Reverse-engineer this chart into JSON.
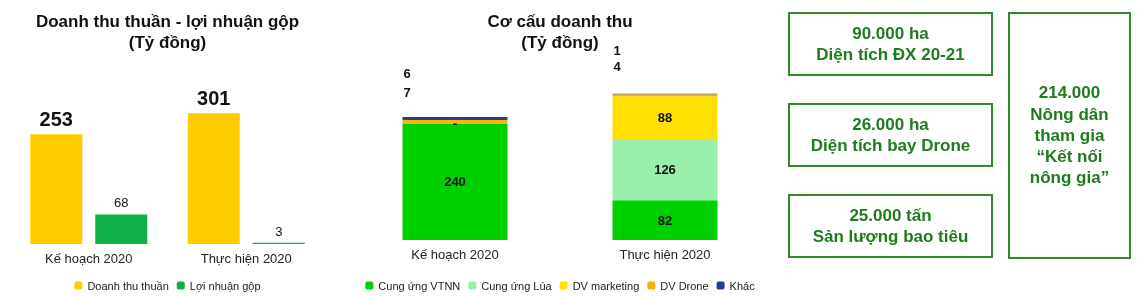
{
  "chart_data": [
    {
      "type": "bar",
      "title": "Doanh thu thuần - lợi nhuận gộp",
      "subtitle": "(Tỷ đồng)",
      "categories": [
        "Kế hoạch 2020",
        "Thực hiện 2020"
      ],
      "series": [
        {
          "name": "Doanh thu thuần",
          "color": "#ffcc00",
          "values": [
            253,
            301
          ]
        },
        {
          "name": "Lợi nhuận gộp",
          "color": "#0fb04a",
          "values": [
            68,
            3
          ]
        }
      ],
      "data_labels": true,
      "legend": "bottom"
    },
    {
      "type": "bar",
      "stacked": true,
      "title": "Cơ cấu doanh thu",
      "subtitle": "(Tỷ đồng)",
      "categories": [
        "Kế hoạch 2020",
        "Thực hiện 2020"
      ],
      "series": [
        {
          "name": "Cung ứng VTNN",
          "color": "#00d000",
          "values": [
            240,
            82
          ],
          "value_labels": [
            "240",
            "82"
          ]
        },
        {
          "name": "Cung ứng Lúa",
          "color": "#99eeaa",
          "values": [
            0,
            126
          ],
          "value_labels": [
            null,
            "126"
          ]
        },
        {
          "name": "DV marketing",
          "color": "#ffe000",
          "values": [
            0,
            88
          ],
          "value_labels": [
            "-",
            "88"
          ]
        },
        {
          "name": "DV Drone",
          "color": "#ffb000",
          "values": [
            7,
            4
          ],
          "value_labels": [
            "7",
            "4"
          ]
        },
        {
          "name": "Khác",
          "color": "#1f3f9f",
          "values": [
            6,
            1
          ],
          "value_labels": [
            "6",
            "1"
          ]
        }
      ],
      "legend": "bottom"
    },
    {
      "type": "other",
      "annotations": [
        "90.000 ha\nDiện tích ĐX 20-21",
        "26.000 ha\nDiện tích bay Drone",
        "25.000 tấn\nSản lượng bao tiêu",
        "214.000\nNông dân\ntham gia\n“Kết nối\nnông gia”"
      ]
    }
  ]
}
